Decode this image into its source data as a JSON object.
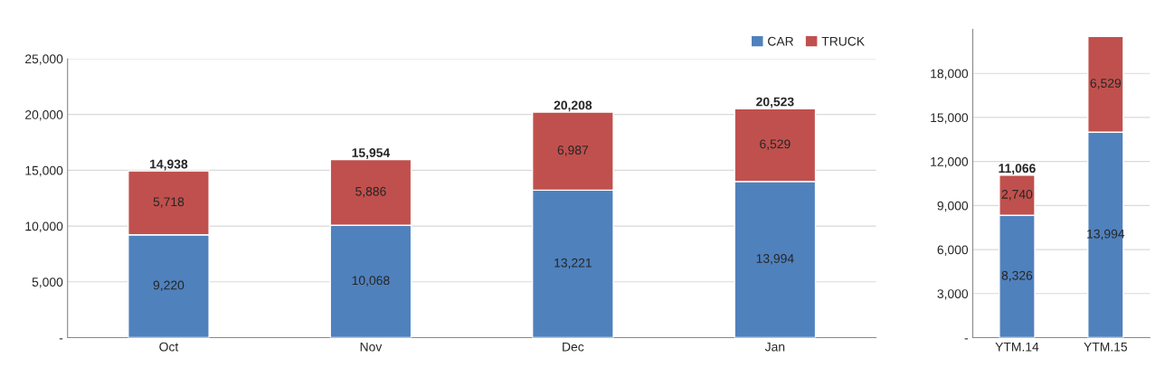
{
  "chart_data": [
    {
      "type": "bar",
      "stacked": true,
      "categories": [
        "Oct",
        "Nov",
        "Dec",
        "Jan"
      ],
      "series": [
        {
          "name": "CAR",
          "color": "#4f81bd",
          "values": [
            9220,
            10068,
            13221,
            13994
          ]
        },
        {
          "name": "TRUCK",
          "color": "#c0504d",
          "values": [
            5718,
            5886,
            6987,
            6529
          ]
        }
      ],
      "ylim": [
        0,
        25000
      ],
      "yticks": [
        {
          "value": 0,
          "label": "-"
        },
        {
          "value": 5000,
          "label": "5,000"
        },
        {
          "value": 10000,
          "label": "10,000"
        },
        {
          "value": 15000,
          "label": "15,000"
        },
        {
          "value": 20000,
          "label": "20,000"
        },
        {
          "value": 25000,
          "label": "25,000"
        }
      ],
      "value_labels": [
        [
          "9,220",
          "10,068",
          "13,221",
          "13,994"
        ],
        [
          "5,718",
          "5,886",
          "6,987",
          "6,529"
        ]
      ],
      "totals": [
        "14,938",
        "15,954",
        "20,208",
        "20,523"
      ],
      "grid": "y",
      "legend": "top right"
    },
    {
      "type": "bar",
      "stacked": true,
      "categories": [
        "YTM.14",
        "YTM.15"
      ],
      "series": [
        {
          "color": "#4f81bd",
          "values": [
            8326,
            13994
          ]
        },
        {
          "color": "#c0504d",
          "values": [
            2740,
            6529
          ]
        }
      ],
      "ylim": [
        0,
        21000
      ],
      "yticks": [
        {
          "value": 0,
          "label": "-"
        },
        {
          "value": 3000,
          "label": "3,000"
        },
        {
          "value": 6000,
          "label": "6,000"
        },
        {
          "value": 9000,
          "label": "9,000"
        },
        {
          "value": 12000,
          "label": "12,000"
        },
        {
          "value": 15000,
          "label": "15,000"
        },
        {
          "value": 18000,
          "label": "18,000"
        }
      ],
      "value_labels": [
        [
          "8,326",
          "13,994"
        ],
        [
          "2,740",
          "6,529"
        ]
      ],
      "totals": [
        "11,066",
        null
      ],
      "grid": "y"
    }
  ]
}
